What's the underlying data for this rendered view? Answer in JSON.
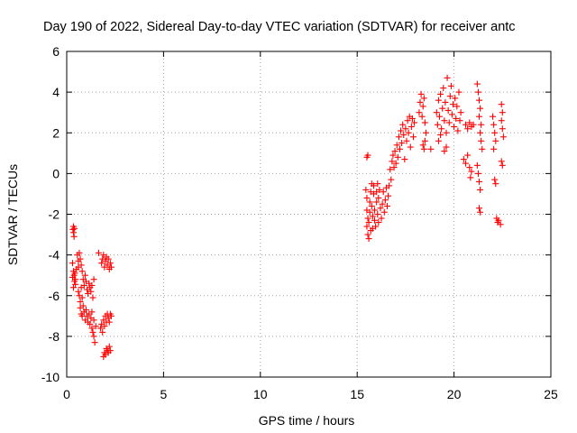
{
  "chart_data": {
    "type": "scatter",
    "title": "Day 190 of 2022, Sidereal Day-to-day VTEC variation (SDTVAR) for receiver antc",
    "xlabel": "GPS time / hours",
    "ylabel": "SDTVAR / TECUs",
    "xlim": [
      0,
      25
    ],
    "ylim": [
      -10,
      6
    ],
    "xticks": [
      0,
      5,
      10,
      15,
      20,
      25
    ],
    "yticks": [
      -10,
      -8,
      -6,
      -4,
      -2,
      0,
      2,
      4,
      6
    ],
    "xtick_labels": [
      "0",
      "5",
      "10",
      "15",
      "20",
      "25"
    ],
    "ytick_labels": [
      "-10",
      "-8",
      "-6",
      "-4",
      "-2",
      "0",
      "2",
      "4",
      "6"
    ],
    "grid": true,
    "marker": "+",
    "color": "#ff0000",
    "series": [
      {
        "name": "SDTVAR",
        "points": [
          [
            0.35,
            -2.6
          ],
          [
            0.35,
            -2.9
          ],
          [
            0.38,
            -3.1
          ],
          [
            0.32,
            -2.75
          ],
          [
            0.4,
            -2.7
          ],
          [
            0.3,
            -4.4
          ],
          [
            0.35,
            -4.8
          ],
          [
            0.3,
            -5.1
          ],
          [
            0.4,
            -5.3
          ],
          [
            0.35,
            -5.6
          ],
          [
            0.42,
            -4.9
          ],
          [
            0.45,
            -5.2
          ],
          [
            0.5,
            -4.7
          ],
          [
            0.38,
            -5.0
          ],
          [
            0.45,
            -5.45
          ],
          [
            0.55,
            -4.0
          ],
          [
            0.6,
            -4.3
          ],
          [
            0.65,
            -3.9
          ],
          [
            0.7,
            -4.2
          ],
          [
            0.6,
            -4.6
          ],
          [
            0.75,
            -4.5
          ],
          [
            0.8,
            -4.8
          ],
          [
            0.6,
            -5.8
          ],
          [
            0.65,
            -6.0
          ],
          [
            0.7,
            -6.3
          ],
          [
            0.75,
            -5.6
          ],
          [
            0.8,
            -6.1
          ],
          [
            0.85,
            -5.2
          ],
          [
            0.9,
            -5.5
          ],
          [
            0.95,
            -5.0
          ],
          [
            1.0,
            -5.3
          ],
          [
            1.05,
            -5.7
          ],
          [
            1.1,
            -5.9
          ],
          [
            1.15,
            -5.4
          ],
          [
            1.2,
            -5.6
          ],
          [
            1.25,
            -5.8
          ],
          [
            1.3,
            -5.5
          ],
          [
            1.35,
            -6.1
          ],
          [
            1.4,
            -5.2
          ],
          [
            0.7,
            -6.6
          ],
          [
            0.75,
            -6.9
          ],
          [
            0.8,
            -7.0
          ],
          [
            0.85,
            -6.5
          ],
          [
            0.9,
            -6.8
          ],
          [
            0.95,
            -7.2
          ],
          [
            1.0,
            -6.7
          ],
          [
            1.05,
            -7.0
          ],
          [
            1.1,
            -7.3
          ],
          [
            1.15,
            -6.9
          ],
          [
            1.2,
            -7.4
          ],
          [
            1.25,
            -7.1
          ],
          [
            1.3,
            -7.6
          ],
          [
            1.35,
            -7.8
          ],
          [
            1.4,
            -8.0
          ],
          [
            1.45,
            -8.3
          ],
          [
            1.5,
            -7.5
          ],
          [
            1.3,
            -6.8
          ],
          [
            1.4,
            -7.2
          ],
          [
            1.65,
            -3.9
          ],
          [
            1.8,
            -7.4
          ],
          [
            1.85,
            -7.8
          ],
          [
            1.9,
            -7.2
          ],
          [
            1.95,
            -7.5
          ],
          [
            2.0,
            -7.0
          ],
          [
            2.05,
            -7.3
          ],
          [
            2.1,
            -6.9
          ],
          [
            2.15,
            -7.1
          ],
          [
            2.2,
            -7.3
          ],
          [
            2.25,
            -6.9
          ],
          [
            2.3,
            -7.0
          ],
          [
            1.75,
            -7.6
          ],
          [
            1.8,
            -4.4
          ],
          [
            1.85,
            -4.2
          ],
          [
            1.9,
            -4.0
          ],
          [
            1.95,
            -4.6
          ],
          [
            2.0,
            -4.3
          ],
          [
            2.05,
            -4.1
          ],
          [
            2.1,
            -4.5
          ],
          [
            2.15,
            -4.2
          ],
          [
            2.2,
            -4.7
          ],
          [
            2.25,
            -4.4
          ],
          [
            2.3,
            -4.6
          ],
          [
            1.9,
            -9.0
          ],
          [
            1.95,
            -8.8
          ],
          [
            2.0,
            -8.9
          ],
          [
            2.05,
            -8.6
          ],
          [
            2.1,
            -8.7
          ],
          [
            2.15,
            -8.8
          ],
          [
            2.2,
            -8.5
          ],
          [
            2.25,
            -8.7
          ],
          [
            15.5,
            0.8
          ],
          [
            15.55,
            0.9
          ],
          [
            15.45,
            -0.8
          ],
          [
            15.5,
            -1.2
          ],
          [
            15.5,
            -1.8
          ],
          [
            15.55,
            -2.2
          ],
          [
            15.5,
            -2.6
          ],
          [
            15.55,
            -3.0
          ],
          [
            15.6,
            -3.2
          ],
          [
            15.6,
            -2.4
          ],
          [
            15.65,
            -1.9
          ],
          [
            15.65,
            -1.4
          ],
          [
            15.7,
            -0.9
          ],
          [
            15.7,
            -2.8
          ],
          [
            15.75,
            -0.5
          ],
          [
            15.75,
            -1.6
          ],
          [
            15.8,
            -2.1
          ],
          [
            15.8,
            -2.7
          ],
          [
            15.85,
            -1.0
          ],
          [
            15.85,
            -0.6
          ],
          [
            15.9,
            -1.8
          ],
          [
            15.9,
            -2.3
          ],
          [
            15.95,
            -2.6
          ],
          [
            16.0,
            -1.4
          ],
          [
            16.0,
            -0.9
          ],
          [
            16.05,
            -0.5
          ],
          [
            16.05,
            -2.0
          ],
          [
            16.1,
            -2.4
          ],
          [
            16.1,
            -1.2
          ],
          [
            16.15,
            -0.8
          ],
          [
            16.2,
            -1.7
          ],
          [
            16.25,
            -2.2
          ],
          [
            16.3,
            -1.5
          ],
          [
            16.35,
            -0.9
          ],
          [
            16.4,
            -1.9
          ],
          [
            16.45,
            -1.3
          ],
          [
            16.5,
            -0.7
          ],
          [
            16.55,
            -1.6
          ],
          [
            16.6,
            -1.1
          ],
          [
            16.65,
            -0.6
          ],
          [
            16.7,
            0.2
          ],
          [
            16.75,
            -0.3
          ],
          [
            16.8,
            0.6
          ],
          [
            16.85,
            0.9
          ],
          [
            16.9,
            0.3
          ],
          [
            16.95,
            1.1
          ],
          [
            17.0,
            0.5
          ],
          [
            17.05,
            1.4
          ],
          [
            17.1,
            0.8
          ],
          [
            17.15,
            1.8
          ],
          [
            17.2,
            1.2
          ],
          [
            17.25,
            2.1
          ],
          [
            17.3,
            1.5
          ],
          [
            17.35,
            2.4
          ],
          [
            17.4,
            1.9
          ],
          [
            17.45,
            0.7
          ],
          [
            17.5,
            2.2
          ],
          [
            17.55,
            1.6
          ],
          [
            17.6,
            2.6
          ],
          [
            17.65,
            2.0
          ],
          [
            17.7,
            2.8
          ],
          [
            17.75,
            1.3
          ],
          [
            17.8,
            2.3
          ],
          [
            17.85,
            2.7
          ],
          [
            17.9,
            1.8
          ],
          [
            17.95,
            2.5
          ],
          [
            18.2,
            3.0
          ],
          [
            18.25,
            3.5
          ],
          [
            18.3,
            3.9
          ],
          [
            18.35,
            2.8
          ],
          [
            18.4,
            3.3
          ],
          [
            18.45,
            3.7
          ],
          [
            18.5,
            2.5
          ],
          [
            18.4,
            1.4
          ],
          [
            18.45,
            1.2
          ],
          [
            18.5,
            1.6
          ],
          [
            18.55,
            2.0
          ],
          [
            18.8,
            1.2
          ],
          [
            19.1,
            3.0
          ],
          [
            19.15,
            2.4
          ],
          [
            19.2,
            3.6
          ],
          [
            19.25,
            2.8
          ],
          [
            19.3,
            3.9
          ],
          [
            19.35,
            2.2
          ],
          [
            19.4,
            3.2
          ],
          [
            19.45,
            4.2
          ],
          [
            19.5,
            2.6
          ],
          [
            19.55,
            3.5
          ],
          [
            19.6,
            2.0
          ],
          [
            19.65,
            4.7
          ],
          [
            19.7,
            3.1
          ],
          [
            19.75,
            2.5
          ],
          [
            19.8,
            3.8
          ],
          [
            19.85,
            4.3
          ],
          [
            19.9,
            2.9
          ],
          [
            19.95,
            3.4
          ],
          [
            20.0,
            2.3
          ],
          [
            20.05,
            3.7
          ],
          [
            20.1,
            2.7
          ],
          [
            20.15,
            3.3
          ],
          [
            20.2,
            2.1
          ],
          [
            20.25,
            4.0
          ],
          [
            20.3,
            2.6
          ],
          [
            20.35,
            3.0
          ],
          [
            19.2,
            1.6
          ],
          [
            19.3,
            1.9
          ],
          [
            19.5,
            1.1
          ],
          [
            19.6,
            1.3
          ],
          [
            20.6,
            2.4
          ],
          [
            20.7,
            2.2
          ],
          [
            20.8,
            2.5
          ],
          [
            20.9,
            2.3
          ],
          [
            21.0,
            2.4
          ],
          [
            20.5,
            0.7
          ],
          [
            20.6,
            0.5
          ],
          [
            20.7,
            0.9
          ],
          [
            20.8,
            0.3
          ],
          [
            20.9,
            0.1
          ],
          [
            20.85,
            -0.2
          ],
          [
            21.2,
            4.4
          ],
          [
            21.25,
            4.0
          ],
          [
            21.3,
            3.6
          ],
          [
            21.35,
            3.2
          ],
          [
            21.3,
            2.8
          ],
          [
            21.4,
            2.4
          ],
          [
            21.35,
            2.0
          ],
          [
            21.4,
            1.6
          ],
          [
            21.45,
            1.2
          ],
          [
            21.2,
            0.4
          ],
          [
            21.25,
            0.0
          ],
          [
            21.3,
            -0.4
          ],
          [
            21.35,
            -0.8
          ],
          [
            21.3,
            -1.7
          ],
          [
            21.35,
            -1.9
          ],
          [
            22.0,
            2.8
          ],
          [
            22.05,
            2.4
          ],
          [
            22.1,
            2.0
          ],
          [
            22.15,
            1.6
          ],
          [
            22.05,
            1.2
          ],
          [
            22.1,
            -0.3
          ],
          [
            22.15,
            -0.5
          ],
          [
            22.2,
            -2.2
          ],
          [
            22.25,
            -2.4
          ],
          [
            22.3,
            -2.3
          ],
          [
            22.4,
            -2.5
          ],
          [
            22.45,
            3.4
          ],
          [
            22.5,
            3.0
          ],
          [
            22.45,
            2.6
          ],
          [
            22.5,
            2.2
          ],
          [
            22.55,
            1.8
          ],
          [
            22.45,
            0.6
          ],
          [
            22.5,
            0.4
          ]
        ]
      }
    ]
  }
}
